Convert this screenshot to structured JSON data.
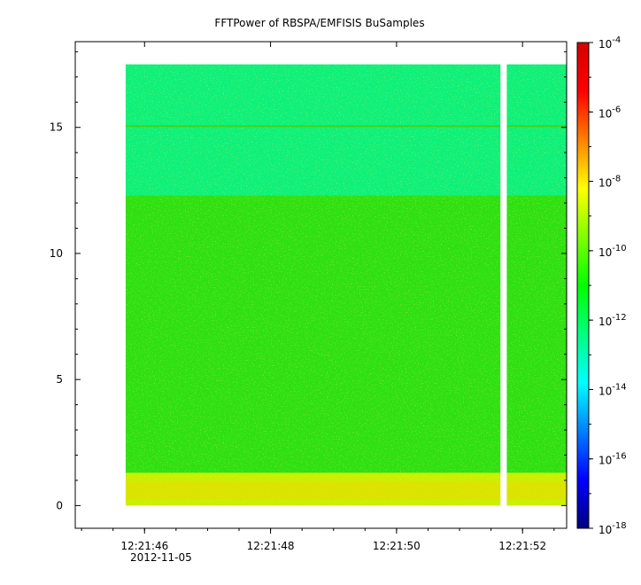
{
  "chart_data": {
    "type": "heatmap",
    "title": "FFTPower of RBSPA/EMFISIS  BuSamples",
    "xlabel": "",
    "ylabel": "",
    "x_axis": {
      "range": [
        "12:21:44.9",
        "12:21:52.7"
      ],
      "tick_labels": [
        "12:21:46",
        "12:21:48",
        "12:21:50",
        "12:21:52"
      ],
      "date_label": "2012-11-05"
    },
    "y_axis": {
      "range": [
        -0.9,
        18.4
      ],
      "ticks": [
        0,
        5,
        10,
        15
      ],
      "tick_labels": [
        "0",
        "5",
        "10",
        "15"
      ]
    },
    "colorbar": {
      "scale": "log",
      "range": [
        1e-18,
        0.0001
      ],
      "tick_values": [
        0.0001,
        1e-06,
        1e-08,
        1e-10,
        1e-12,
        1e-14,
        1e-16,
        1e-18
      ],
      "tick_labels": [
        {
          "base": "10",
          "exp": "-4"
        },
        {
          "base": "10",
          "exp": "-6"
        },
        {
          "base": "10",
          "exp": "-8"
        },
        {
          "base": "10",
          "exp": "-10"
        },
        {
          "base": "10",
          "exp": "-12"
        },
        {
          "base": "10",
          "exp": "-14"
        },
        {
          "base": "10",
          "exp": "-16"
        },
        {
          "base": "10",
          "exp": "-18"
        }
      ],
      "colors": [
        "#00007f",
        "#0000ff",
        "#0080ff",
        "#00ffff",
        "#00ff80",
        "#00ff00",
        "#80ff00",
        "#ffff00",
        "#ff8000",
        "#ff0000",
        "#d40000"
      ]
    },
    "data_extent": {
      "x_start": "12:21:45.7",
      "x_end": "12:21:52.7",
      "y_min": 0,
      "y_max": 17.5
    },
    "data_gap": {
      "x_start": "12:21:51.65",
      "x_end": "12:21:51.75"
    },
    "bands": [
      {
        "y_from": 0,
        "y_to": 1.3,
        "log10_power": -9,
        "color": "#c8f000"
      },
      {
        "y_from": 1.3,
        "y_to": 12.3,
        "log10_power": -10.3,
        "color": "#2ee012"
      },
      {
        "y_from": 12.3,
        "y_to": 17.5,
        "log10_power": -11.8,
        "color": "#0ef07a"
      }
    ],
    "line_feature": {
      "y": 15.05,
      "log10_power": -10,
      "color": "#42d31a"
    },
    "grid": false,
    "legend": "colorbar-right"
  }
}
